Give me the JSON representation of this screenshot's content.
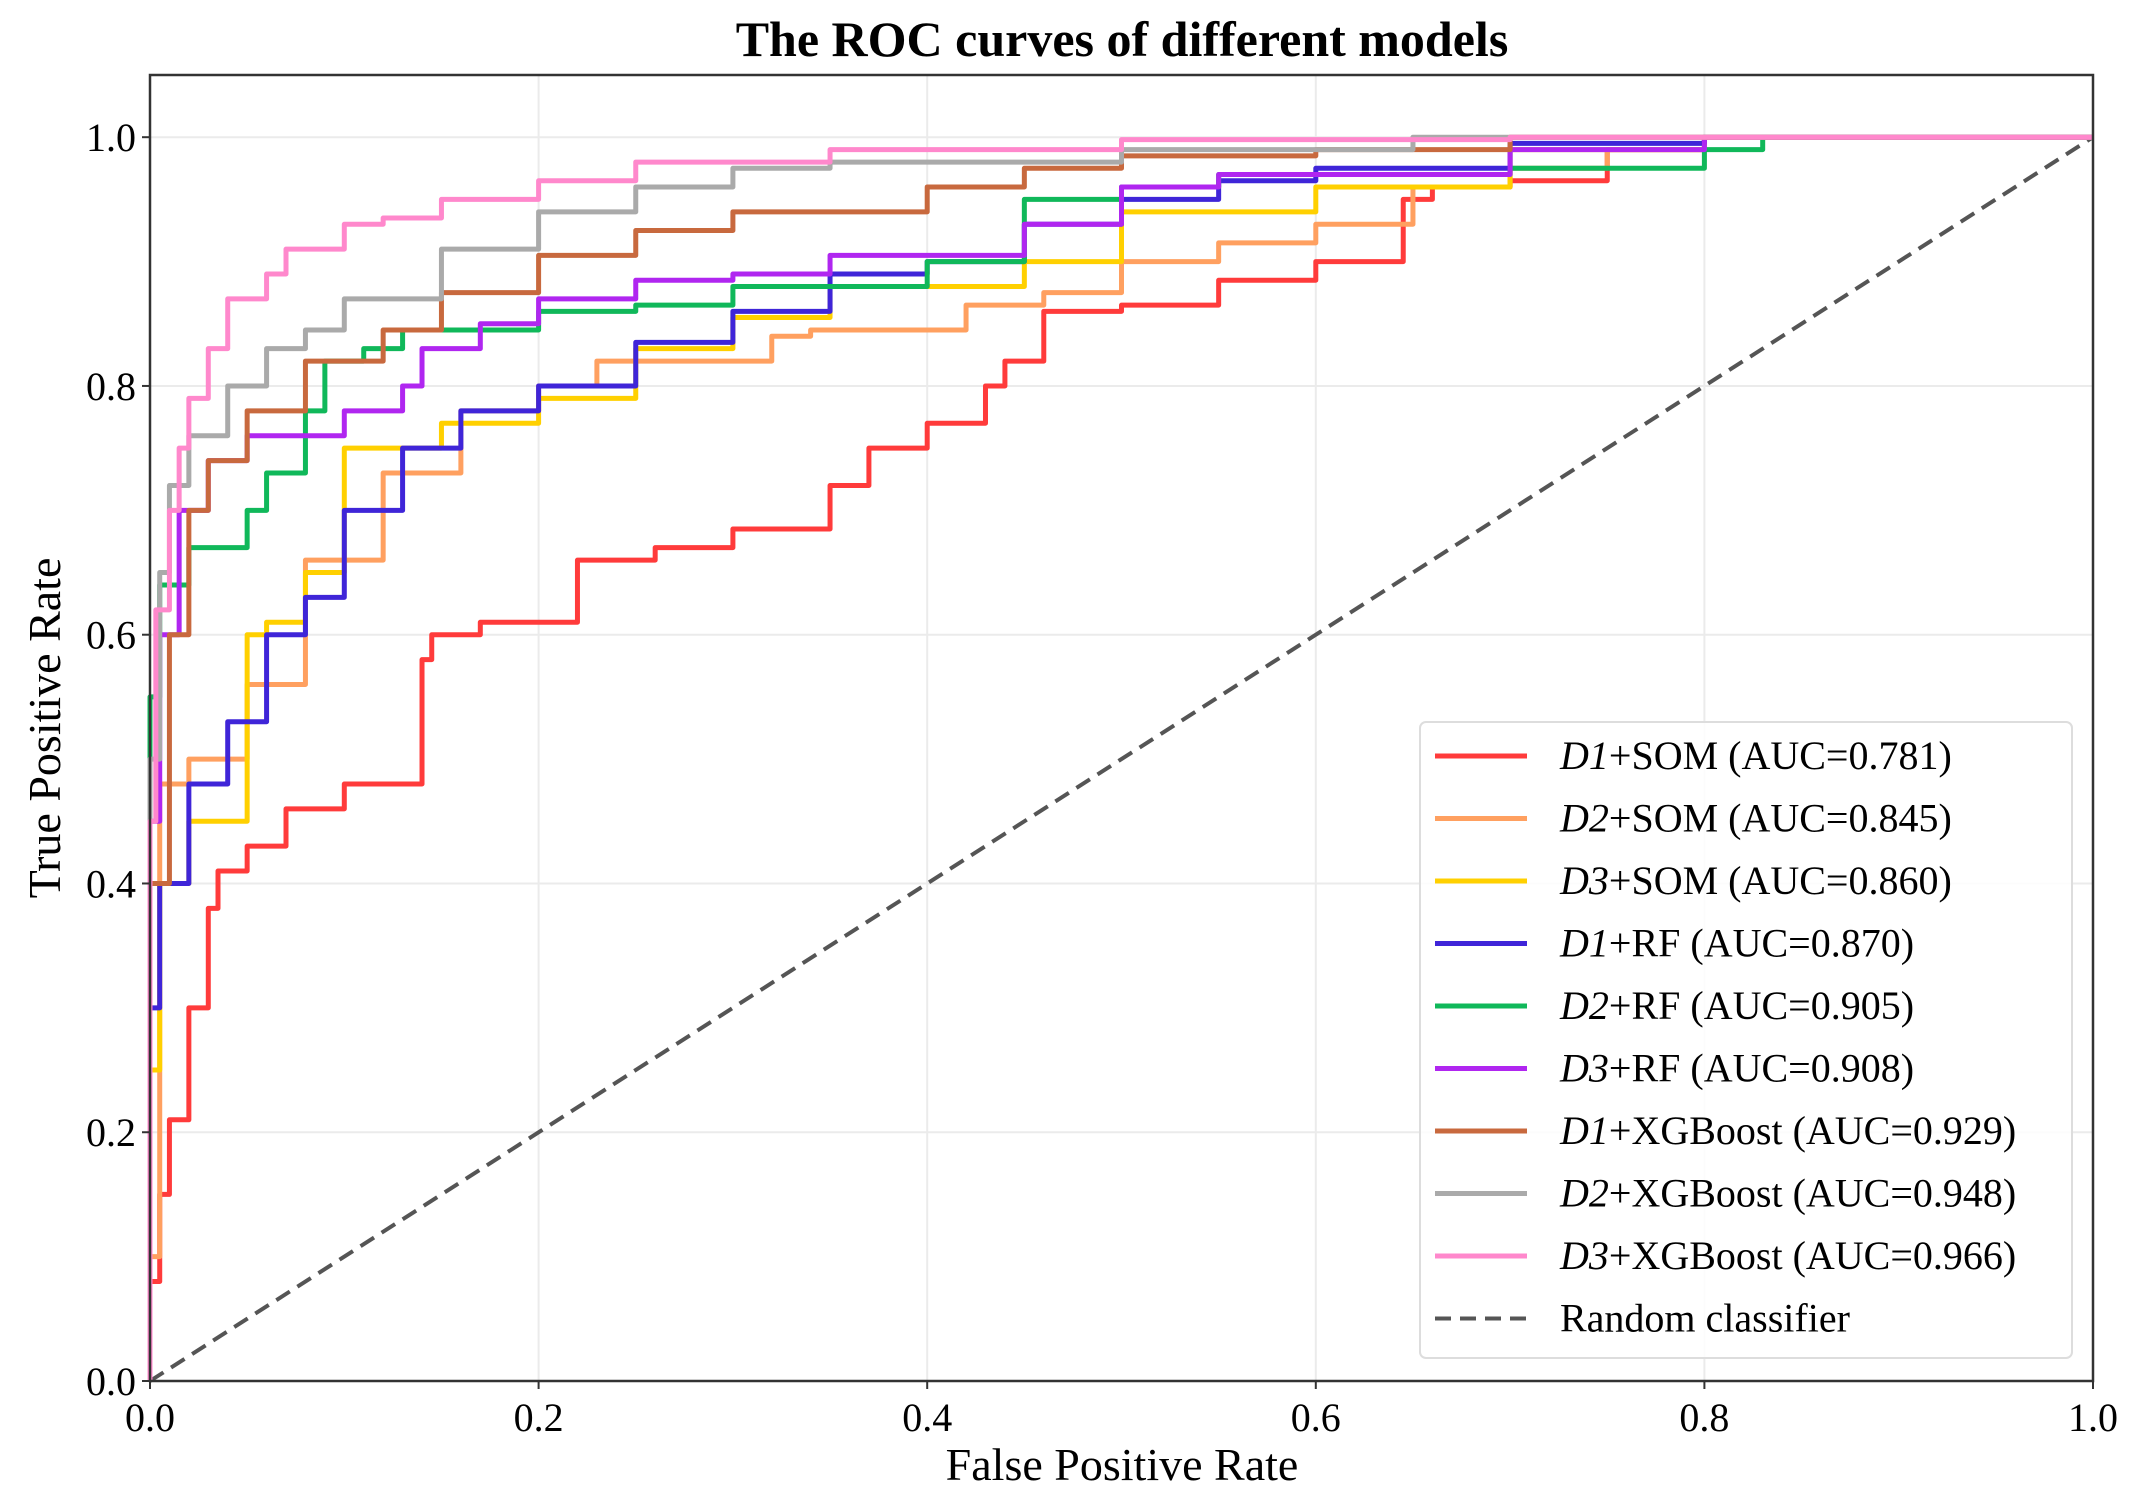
{
  "chart_data": {
    "type": "line",
    "title": "The ROC curves of different models",
    "xlabel": "False Positive Rate",
    "ylabel": "True Positive Rate",
    "xlim": [
      0,
      1.0
    ],
    "ylim": [
      0,
      1.05
    ],
    "xticks": [
      "0.0",
      "0.2",
      "0.4",
      "0.6",
      "0.8",
      "1.0"
    ],
    "yticks": [
      "0.0",
      "0.2",
      "0.4",
      "0.6",
      "0.8",
      "1.0"
    ],
    "grid": true,
    "legend_position": "lower-right",
    "series": [
      {
        "name_prefix": "D1",
        "name_rest": "+SOM (AUC=0.781)",
        "color": "#ff3b3b",
        "x": [
          0,
          0.005,
          0.01,
          0.02,
          0.03,
          0.035,
          0.05,
          0.07,
          0.1,
          0.14,
          0.145,
          0.17,
          0.22,
          0.26,
          0.3,
          0.35,
          0.37,
          0.4,
          0.43,
          0.44,
          0.46,
          0.5,
          0.55,
          0.6,
          0.645,
          0.66,
          0.7,
          0.75,
          0.8,
          1
        ],
        "y": [
          0,
          0.08,
          0.15,
          0.21,
          0.3,
          0.38,
          0.41,
          0.43,
          0.46,
          0.48,
          0.58,
          0.6,
          0.61,
          0.66,
          0.67,
          0.685,
          0.72,
          0.75,
          0.77,
          0.8,
          0.82,
          0.86,
          0.865,
          0.885,
          0.9,
          0.95,
          0.96,
          0.965,
          0.99,
          1
        ]
      },
      {
        "name_prefix": "D2",
        "name_rest": "+SOM (AUC=0.845)",
        "color": "#ffa060",
        "x": [
          0,
          0.005,
          0.02,
          0.05,
          0.08,
          0.12,
          0.16,
          0.2,
          0.23,
          0.28,
          0.32,
          0.34,
          0.42,
          0.46,
          0.5,
          0.55,
          0.6,
          0.65,
          0.7,
          0.75,
          0.8,
          1
        ],
        "y": [
          0,
          0.1,
          0.48,
          0.5,
          0.56,
          0.66,
          0.73,
          0.78,
          0.8,
          0.82,
          0.82,
          0.84,
          0.845,
          0.865,
          0.875,
          0.9,
          0.915,
          0.93,
          0.96,
          0.975,
          0.99,
          1
        ]
      },
      {
        "name_prefix": "D3",
        "name_rest": "+SOM (AUC=0.860)",
        "color": "#ffd000",
        "x": [
          0,
          0.005,
          0.02,
          0.05,
          0.06,
          0.08,
          0.1,
          0.15,
          0.2,
          0.25,
          0.3,
          0.35,
          0.4,
          0.45,
          0.5,
          0.6,
          0.7,
          0.8,
          1
        ],
        "y": [
          0,
          0.25,
          0.4,
          0.45,
          0.6,
          0.61,
          0.65,
          0.75,
          0.77,
          0.79,
          0.83,
          0.855,
          0.88,
          0.88,
          0.9,
          0.94,
          0.96,
          0.99,
          1
        ]
      },
      {
        "name_prefix": "D1",
        "name_rest": "+RF (AUC=0.870)",
        "color": "#3f25d8",
        "x": [
          0,
          0.005,
          0.02,
          0.04,
          0.06,
          0.08,
          0.1,
          0.13,
          0.16,
          0.2,
          0.25,
          0.3,
          0.35,
          0.4,
          0.45,
          0.5,
          0.55,
          0.6,
          0.7,
          0.8,
          1
        ],
        "y": [
          0,
          0.3,
          0.4,
          0.48,
          0.53,
          0.6,
          0.63,
          0.7,
          0.75,
          0.78,
          0.8,
          0.835,
          0.86,
          0.89,
          0.9,
          0.93,
          0.95,
          0.965,
          0.975,
          0.995,
          1
        ]
      },
      {
        "name_prefix": "D2",
        "name_rest": "+RF (AUC=0.905)",
        "color": "#10b85a",
        "x": [
          0,
          0.005,
          0.02,
          0.05,
          0.06,
          0.08,
          0.09,
          0.11,
          0.13,
          0.2,
          0.25,
          0.3,
          0.4,
          0.45,
          0.5,
          0.55,
          0.7,
          0.8,
          0.83,
          1
        ],
        "y": [
          0,
          0.55,
          0.64,
          0.67,
          0.7,
          0.73,
          0.78,
          0.82,
          0.83,
          0.845,
          0.86,
          0.865,
          0.88,
          0.9,
          0.95,
          0.96,
          0.97,
          0.975,
          0.99,
          1
        ]
      },
      {
        "name_prefix": "D3",
        "name_rest": "+RF (AUC=0.908)",
        "color": "#b026f0",
        "x": [
          0,
          0.005,
          0.015,
          0.03,
          0.05,
          0.1,
          0.13,
          0.14,
          0.17,
          0.2,
          0.25,
          0.3,
          0.35,
          0.45,
          0.5,
          0.55,
          0.7,
          0.8,
          1
        ],
        "y": [
          0,
          0.45,
          0.6,
          0.7,
          0.74,
          0.76,
          0.78,
          0.8,
          0.83,
          0.85,
          0.87,
          0.885,
          0.89,
          0.905,
          0.93,
          0.96,
          0.97,
          0.99,
          1
        ]
      },
      {
        "name_prefix": "D1",
        "name_rest": "+XGBoost (AUC=0.929)",
        "color": "#c8693e",
        "x": [
          0,
          0.01,
          0.02,
          0.03,
          0.05,
          0.08,
          0.12,
          0.15,
          0.2,
          0.25,
          0.3,
          0.35,
          0.4,
          0.45,
          0.5,
          0.6,
          0.7,
          0.8,
          1
        ],
        "y": [
          0,
          0.4,
          0.6,
          0.7,
          0.74,
          0.78,
          0.82,
          0.845,
          0.875,
          0.905,
          0.925,
          0.94,
          0.94,
          0.96,
          0.975,
          0.985,
          0.99,
          1,
          1
        ]
      },
      {
        "name_prefix": "D2",
        "name_rest": "+XGBoost (AUC=0.948)",
        "color": "#aaaaaa",
        "x": [
          0,
          0.005,
          0.01,
          0.02,
          0.04,
          0.06,
          0.08,
          0.1,
          0.15,
          0.2,
          0.25,
          0.3,
          0.35,
          0.5,
          0.65,
          0.8,
          1
        ],
        "y": [
          0,
          0.5,
          0.65,
          0.72,
          0.76,
          0.8,
          0.83,
          0.845,
          0.87,
          0.91,
          0.94,
          0.96,
          0.975,
          0.98,
          0.99,
          1,
          1
        ]
      },
      {
        "name_prefix": "D3",
        "name_rest": "+XGBoost (AUC=0.966)",
        "color": "#ff88cc",
        "x": [
          0,
          0.003,
          0.01,
          0.015,
          0.02,
          0.03,
          0.04,
          0.06,
          0.07,
          0.1,
          0.12,
          0.15,
          0.2,
          0.25,
          0.35,
          0.5,
          0.7,
          1
        ],
        "y": [
          0,
          0.45,
          0.62,
          0.7,
          0.75,
          0.79,
          0.83,
          0.87,
          0.89,
          0.91,
          0.93,
          0.935,
          0.95,
          0.965,
          0.98,
          0.99,
          0.998,
          1
        ]
      }
    ],
    "reference": {
      "name": "Random classifier",
      "color": "#555555",
      "x": [
        0,
        1
      ],
      "y": [
        0,
        1
      ]
    }
  }
}
